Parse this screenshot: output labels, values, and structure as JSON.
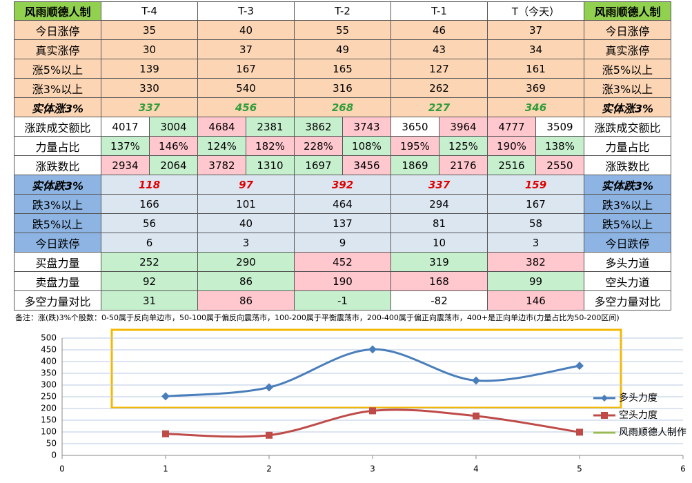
{
  "table": {
    "header": [
      "风雨顺德人制",
      "T-4",
      "T-3",
      "T-2",
      "T-1",
      "T（今天）",
      "风雨顺德人制"
    ],
    "rows": [
      [
        "今日涨停",
        35,
        40,
        55,
        46,
        37,
        "今日涨停"
      ],
      [
        "真实涨停",
        30,
        37,
        49,
        43,
        34,
        "真实涨停"
      ],
      [
        "涨5%以上",
        139,
        167,
        165,
        127,
        161,
        "涨5%以上"
      ],
      [
        "涨3%以上",
        330,
        540,
        316,
        262,
        369,
        "涨3%以上"
      ],
      [
        "实体涨3%",
        337,
        456,
        268,
        227,
        346,
        "实体涨3%"
      ],
      [
        "涨跌成交额比",
        [
          4017,
          3004
        ],
        [
          4684,
          2381
        ],
        [
          3862,
          3743
        ],
        [
          3650,
          3964
        ],
        [
          4777,
          3509
        ],
        "涨跌成交额比"
      ],
      [
        "力量占比",
        [
          "137%",
          "146%"
        ],
        [
          "124%",
          "182%"
        ],
        [
          "228%",
          "108%"
        ],
        [
          "195%",
          "125%"
        ],
        [
          "190%",
          "138%"
        ],
        "力量占比"
      ],
      [
        "涨跌数比",
        [
          2934,
          2064
        ],
        [
          3782,
          1310
        ],
        [
          1697,
          3456
        ],
        [
          1869,
          2176
        ],
        [
          2516,
          2550
        ],
        "涨跌数比"
      ],
      [
        "实体跌3%",
        118,
        97,
        392,
        337,
        159,
        "实体跌3%"
      ],
      [
        "跌3%以上",
        166,
        101,
        464,
        294,
        167,
        "跌3%以上"
      ],
      [
        "跌5%以上",
        56,
        40,
        137,
        81,
        58,
        "跌5%以上"
      ],
      [
        "今日跌停",
        6,
        3,
        9,
        10,
        3,
        "今日跌停"
      ],
      [
        "买盘力量",
        252,
        290,
        452,
        319,
        382,
        "多头力道"
      ],
      [
        "卖盘力量",
        92,
        86,
        190,
        168,
        99,
        "空头力道"
      ],
      [
        "多空力量对比",
        31,
        86,
        -1,
        -82,
        146,
        "多空力量对比"
      ]
    ]
  },
  "note": "备注：涨(跌)3%个股数：0-50属于反向单边市，50-100属于偏反向震荡市，100-200属于平衡震荡市，200-400属于偏正向震荡市，400+是正向单边市(力量占比为50-200区间)",
  "chart_data": {
    "type": "line",
    "x": [
      1,
      2,
      3,
      4,
      5
    ],
    "series": [
      {
        "name": "多头力度",
        "color": "#4a7ebb",
        "values": [
          252,
          290,
          452,
          319,
          382
        ]
      },
      {
        "name": "空头力度",
        "color": "#be4b48",
        "values": [
          92,
          86,
          190,
          168,
          99
        ]
      },
      {
        "name": "风雨顺德人制作",
        "color": "#98b954",
        "values": [
          null,
          null,
          null,
          null,
          null
        ]
      }
    ],
    "xlim": [
      0,
      6
    ],
    "xticks": [
      0,
      1,
      2,
      3,
      4,
      5,
      6
    ],
    "ylim": [
      0,
      500
    ],
    "yticks": [
      0,
      50,
      100,
      150,
      200,
      250,
      300,
      350,
      400,
      450,
      500
    ],
    "grid": true,
    "legend": "right"
  }
}
